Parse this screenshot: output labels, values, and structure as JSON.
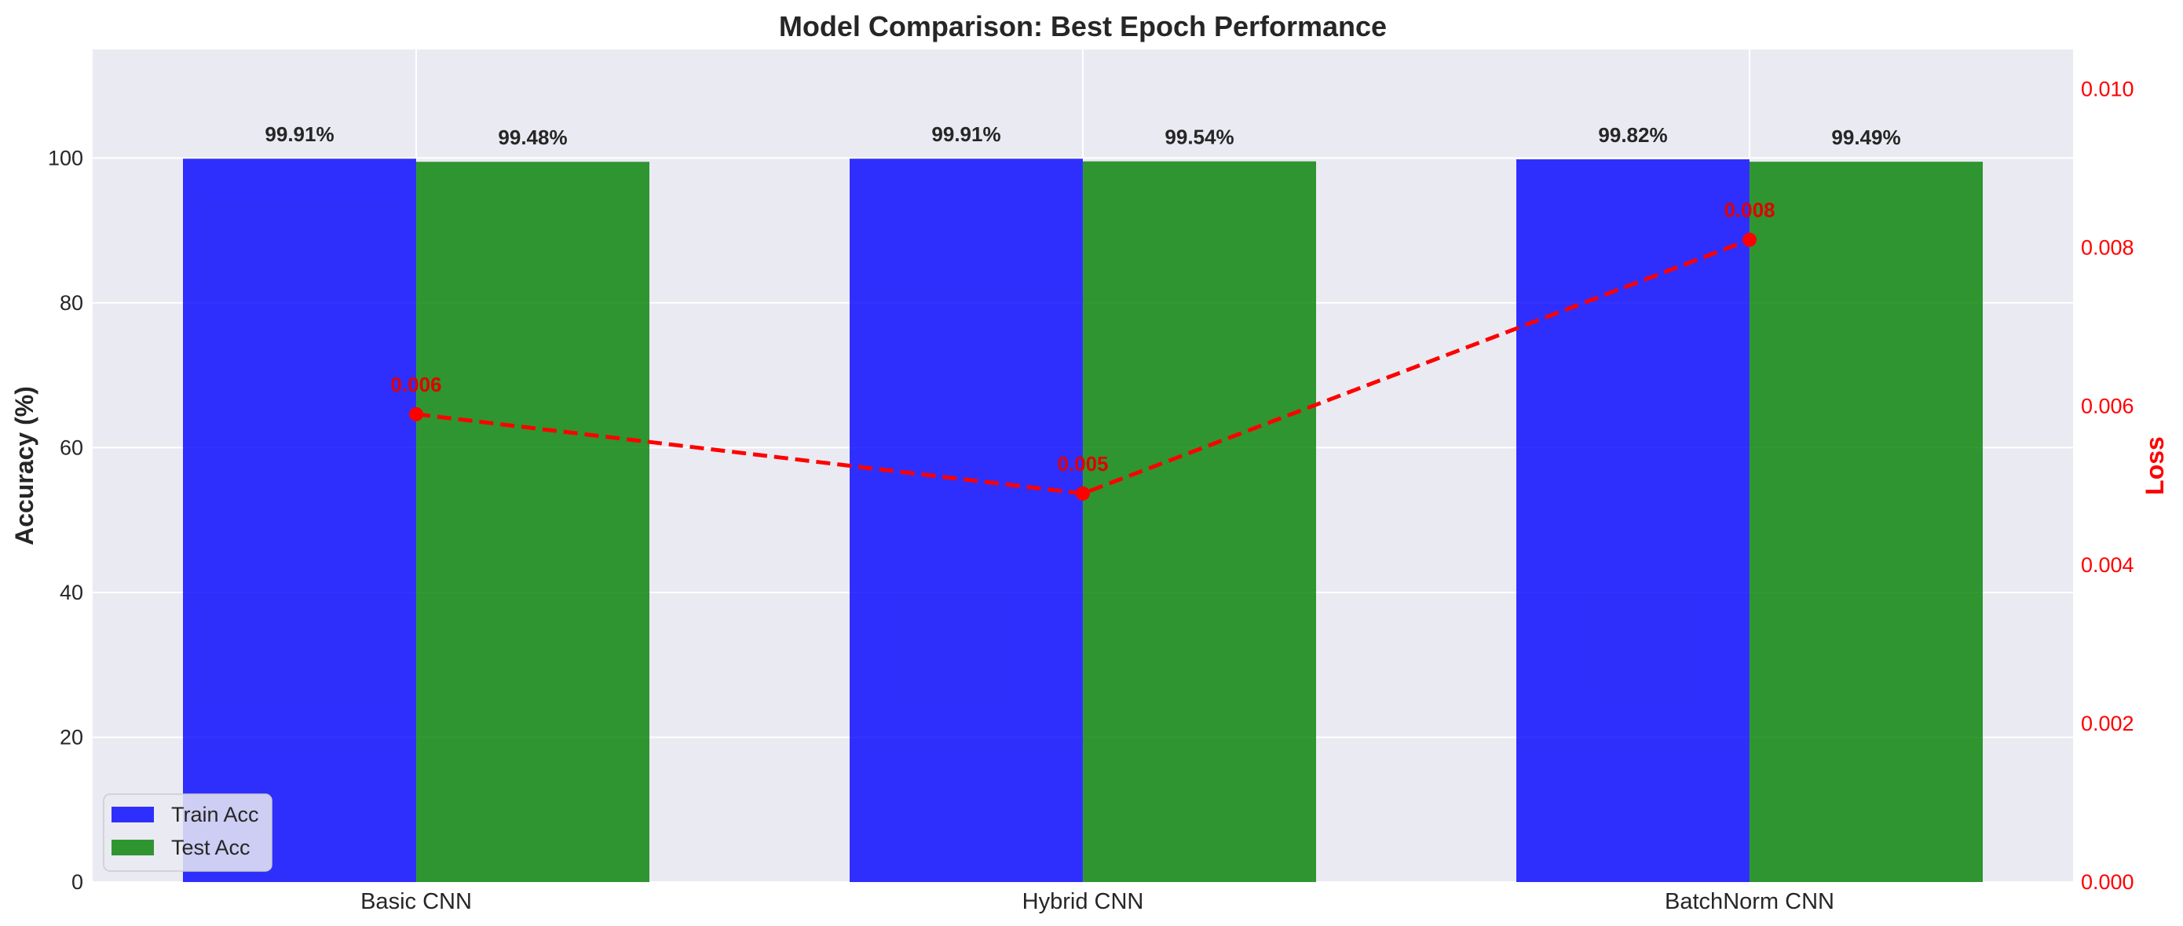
{
  "chart_data": {
    "type": "bar",
    "title": "Model Comparison: Best Epoch Performance",
    "categories": [
      "Basic CNN",
      "Hybrid CNN",
      "BatchNorm CNN"
    ],
    "ylabel": "Accuracy (%)",
    "ylim": [
      0,
      115
    ],
    "yticks": [
      0,
      20,
      40,
      60,
      80,
      100
    ],
    "y2label": "Loss",
    "y2lim": [
      0,
      0.0105
    ],
    "y2ticks": [
      "0.000",
      "0.002",
      "0.004",
      "0.006",
      "0.008",
      "0.010"
    ],
    "y2tick_values": [
      0,
      0.002,
      0.004,
      0.006,
      0.008,
      0.01
    ],
    "series": [
      {
        "name": "Train Acc",
        "color": "#0000ff",
        "values": [
          99.91,
          99.91,
          99.82
        ],
        "labels": [
          "99.91%",
          "99.91%",
          "99.82%"
        ]
      },
      {
        "name": "Test Acc",
        "color": "#008000",
        "values": [
          99.48,
          99.54,
          99.49
        ],
        "labels": [
          "99.48%",
          "99.54%",
          "99.49%"
        ]
      }
    ],
    "loss_series": {
      "values": [
        0.0059,
        0.0049,
        0.0081
      ],
      "labels": [
        "0.006",
        "0.005",
        "0.008"
      ],
      "color": "#ff0000",
      "style": "dashed",
      "marker": "circle",
      "axis": "right"
    },
    "legend": {
      "position": "lower-left",
      "entries": [
        "Train Acc",
        "Test Acc"
      ]
    },
    "grid": true,
    "background": "#eaeaf2"
  }
}
